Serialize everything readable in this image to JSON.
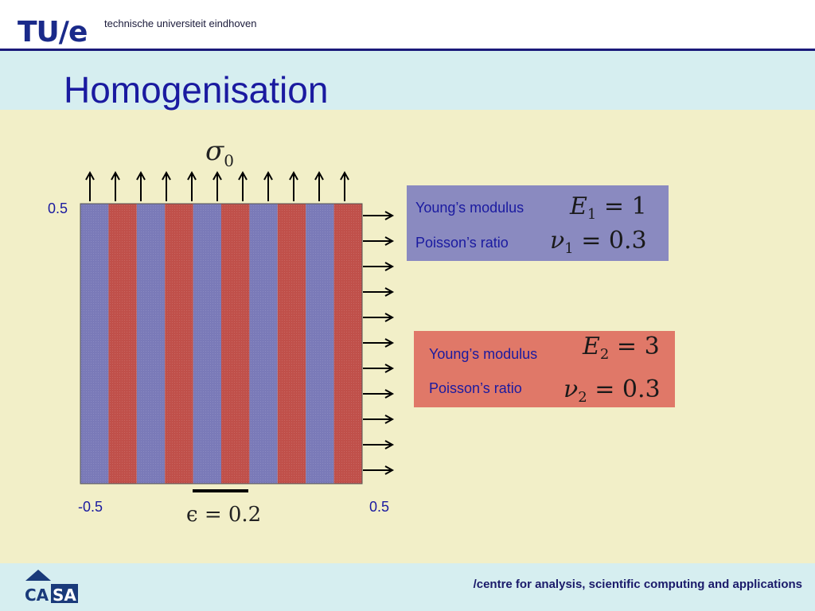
{
  "header": {
    "logo_tu": "TU",
    "logo_slash": "/",
    "logo_e": "e",
    "university": "technische universiteit eindhoven"
  },
  "slide": {
    "title": "Homogenisation"
  },
  "figure": {
    "stress_label_sym": "σ",
    "stress_label_sub": "0",
    "y_top_label": "0.5",
    "x_left_label": "-0.5",
    "x_right_label": "0.5",
    "epsilon_label": "ϵ = 0.2",
    "strip_colors": [
      "#7a7ab8",
      "#c0504a"
    ]
  },
  "materials": [
    {
      "background": "#8a8ac0",
      "young_label": "Young’s modulus",
      "young_sym": "E",
      "young_sub": "1",
      "young_val": "= 1",
      "poisson_label": "Poisson’s ratio",
      "poisson_sym": "ν",
      "poisson_sub": "1",
      "poisson_val": "= 0.3"
    },
    {
      "background": "#e07868",
      "young_label": "Young’s modulus",
      "young_sym": "E",
      "young_sub": "2",
      "young_val": "= 3",
      "poisson_label": "Poisson’s ratio",
      "poisson_sym": "ν",
      "poisson_sub": "2",
      "poisson_val": "= 0.3"
    }
  ],
  "footer": {
    "logo_text": "CASA",
    "tagline": "/centre for analysis, scientific computing and applications"
  }
}
